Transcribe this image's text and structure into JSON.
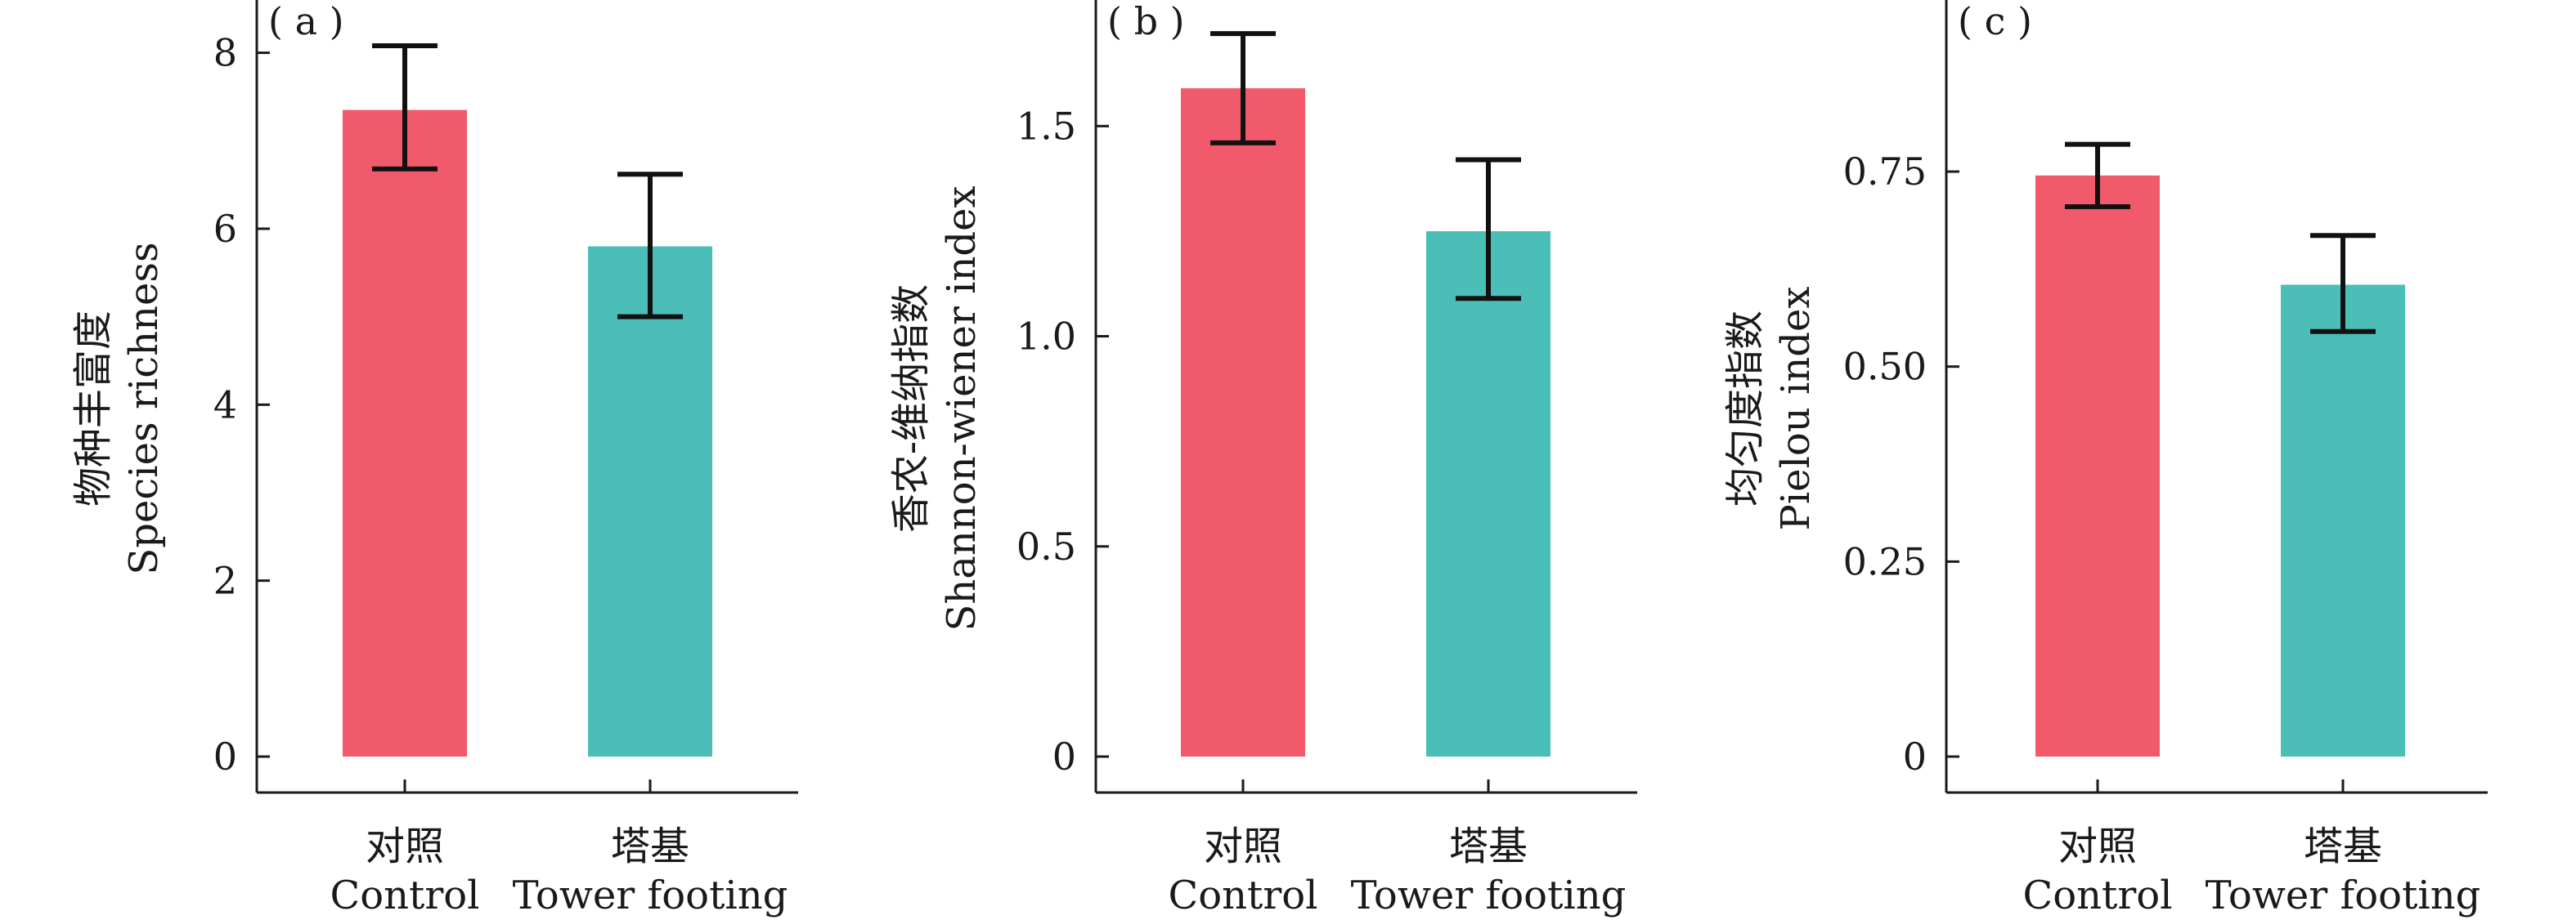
{
  "chart_data": [
    {
      "type": "bar",
      "panel_label": "( a )",
      "categories": [
        {
          "label_zh": "对照",
          "label_en": "Control"
        },
        {
          "label_zh": "塔基",
          "label_en": "Tower footing"
        }
      ],
      "values": [
        7.35,
        5.8
      ],
      "error_low": [
        6.68,
        5.0
      ],
      "error_high": [
        8.08,
        6.62
      ],
      "ylabel_zh": "物种丰富度",
      "ylabel_en": "Species richness",
      "ylim": [
        0,
        8.6
      ],
      "yticks": [
        0,
        2,
        4,
        6,
        8
      ],
      "ytick_labels": [
        "0",
        "2",
        "4",
        "6",
        "8"
      ],
      "colors": [
        "#f05a6a",
        "#4bbfb7"
      ],
      "grid": false
    },
    {
      "type": "bar",
      "panel_label": "( b )",
      "categories": [
        {
          "label_zh": "对照",
          "label_en": "Control"
        },
        {
          "label_zh": "塔基",
          "label_en": "Tower footing"
        }
      ],
      "values": [
        1.59,
        1.25
      ],
      "error_low": [
        1.46,
        1.09
      ],
      "error_high": [
        1.72,
        1.42
      ],
      "ylabel_zh": "香农-维纳指数",
      "ylabel_en": "Shannon-wiener index",
      "ylim": [
        0,
        1.8
      ],
      "yticks": [
        0,
        0.5,
        1.0,
        1.5
      ],
      "ytick_labels": [
        "0",
        "0.5",
        "1.0",
        "1.5"
      ],
      "colors": [
        "#f05a6a",
        "#4bbfb7"
      ],
      "grid": false
    },
    {
      "type": "bar",
      "panel_label": "( c )",
      "categories": [
        {
          "label_zh": "对照",
          "label_en": "Control"
        },
        {
          "label_zh": "塔基",
          "label_en": "Tower footing"
        }
      ],
      "values": [
        0.745,
        0.605
      ],
      "error_low": [
        0.705,
        0.545
      ],
      "error_high": [
        0.785,
        0.668
      ],
      "ylabel_zh": "均匀度指数",
      "ylabel_en": "Pielou index",
      "ylim": [
        0,
        0.97
      ],
      "yticks": [
        0,
        0.25,
        0.5,
        0.75
      ],
      "ytick_labels": [
        "0",
        "0.25",
        "0.50",
        "0.75"
      ],
      "colors": [
        "#f05a6a",
        "#4bbfb7"
      ],
      "grid": false
    }
  ]
}
